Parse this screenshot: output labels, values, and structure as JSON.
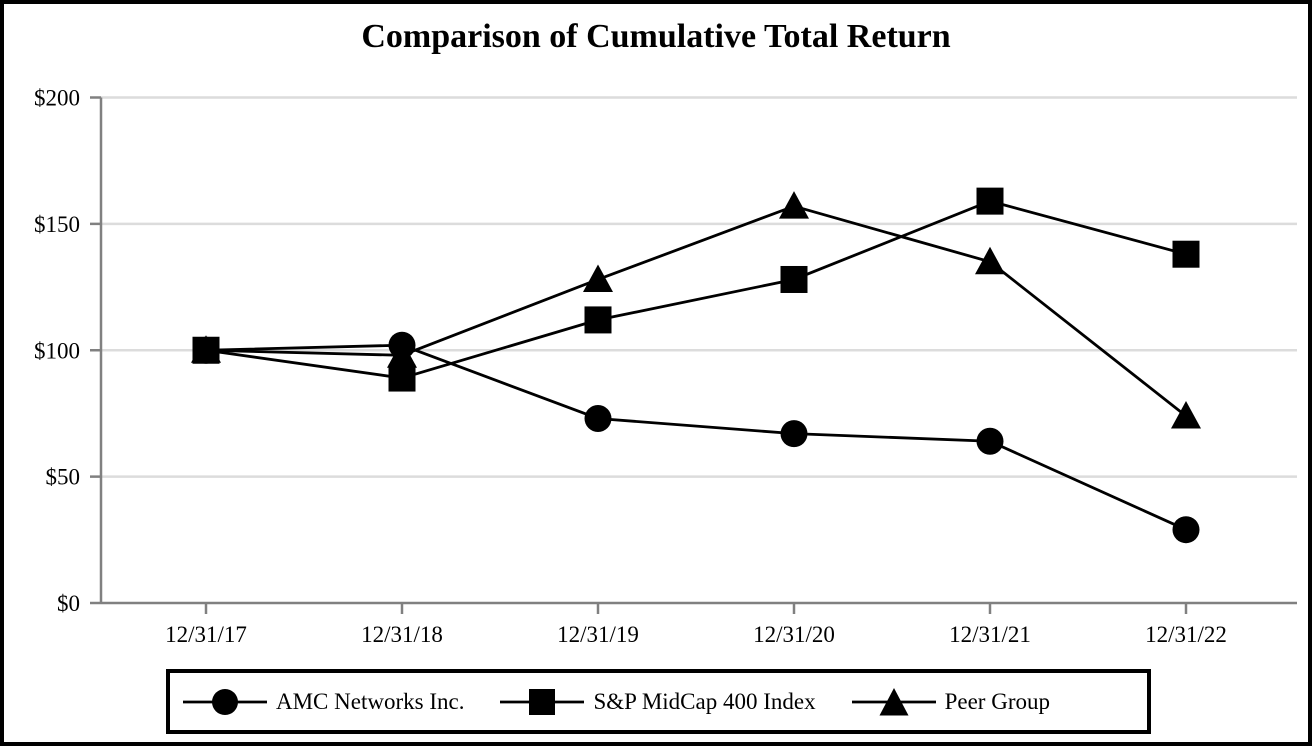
{
  "figure": {
    "title": "Comparison of Cumulative Total Return"
  },
  "chart_data": {
    "type": "line",
    "title": "Comparison of Cumulative Total Return",
    "categories": [
      "12/31/17",
      "12/31/18",
      "12/31/19",
      "12/31/20",
      "12/31/21",
      "12/31/22"
    ],
    "series": [
      {
        "name": "AMC Networks Inc.",
        "marker": "circle",
        "values": [
          100,
          102,
          73,
          67,
          64,
          29
        ]
      },
      {
        "name": "S&P MidCap 400 Index",
        "marker": "square",
        "values": [
          100,
          89,
          112,
          128,
          159,
          138
        ]
      },
      {
        "name": "Peer Group",
        "marker": "triangle",
        "values": [
          100,
          98,
          128,
          157,
          135,
          74
        ]
      }
    ],
    "xlabel": "",
    "ylabel": "",
    "ylim": [
      0,
      200
    ],
    "yticks": [
      0,
      50,
      100,
      150,
      200
    ],
    "ytick_labels": [
      "$0",
      "$50",
      "$100",
      "$150",
      "$200"
    ],
    "currency_format": "dollars",
    "grid": "horizontal",
    "legend_position": "bottom",
    "colors": {
      "series": "#000000",
      "grid": "#dcdcdc",
      "axis": "#808080",
      "text": "#000000",
      "frame": "#000000"
    }
  }
}
